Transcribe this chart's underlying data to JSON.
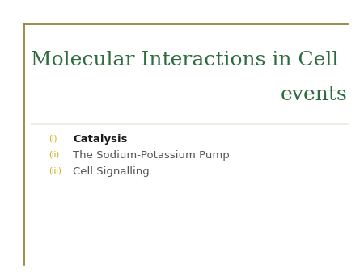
{
  "title_line1": "Molecular Interactions in Cell",
  "title_line2": "events",
  "title_color": "#2E6B3E",
  "background_color": "#FFFFFF",
  "border_color": "#8B7B2A",
  "separator_line_color": "#8B7B2A",
  "bullet_color": "#C8A800",
  "items": [
    {
      "label": "(i)",
      "text": "Catalysis",
      "bold": true,
      "text_color": "#1a1a1a"
    },
    {
      "label": "(ii)",
      "text": "The Sodium-Potassium Pump",
      "bold": false,
      "text_color": "#555555"
    },
    {
      "label": "(iii)",
      "text": "Cell Signalling",
      "bold": false,
      "text_color": "#555555"
    }
  ],
  "item_fontsize": 9.5,
  "label_fontsize": 7,
  "title_fontsize": 18,
  "figsize": [
    4.5,
    3.38
  ],
  "dpi": 100
}
